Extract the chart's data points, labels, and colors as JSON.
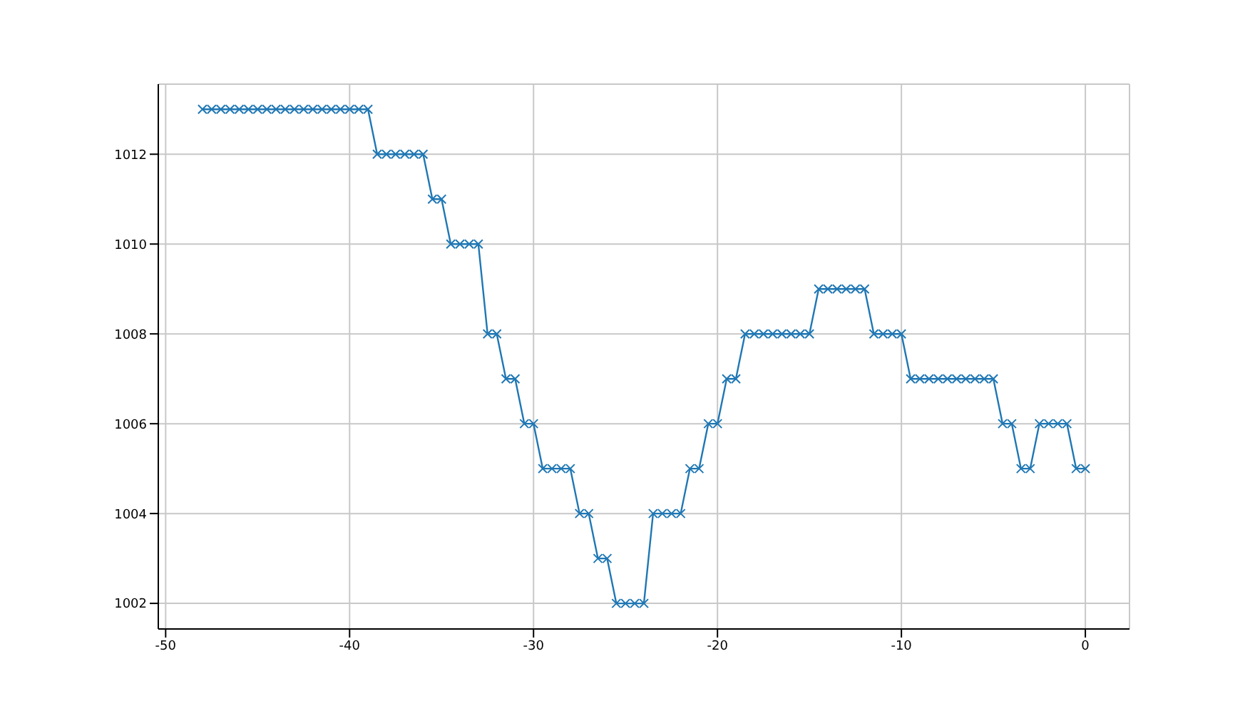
{
  "chart_data": {
    "type": "line",
    "x": [
      -48,
      -47.5,
      -47,
      -46.5,
      -46,
      -45.5,
      -45,
      -44.5,
      -44,
      -43.5,
      -43,
      -42.5,
      -42,
      -41.5,
      -41,
      -40.5,
      -40,
      -39.5,
      -39,
      -38.5,
      -38,
      -37.5,
      -37,
      -36.5,
      -36,
      -35.5,
      -35,
      -34.5,
      -34,
      -33.5,
      -33,
      -32.5,
      -32,
      -31.5,
      -31,
      -30.5,
      -30,
      -29.5,
      -29,
      -28.5,
      -28,
      -27.5,
      -27,
      -26.5,
      -26,
      -25.5,
      -25,
      -24.5,
      -24,
      -23.5,
      -23,
      -22.5,
      -22,
      -21.5,
      -21,
      -20.5,
      -20,
      -19.5,
      -19,
      -18.5,
      -18,
      -17.5,
      -17,
      -16.5,
      -16,
      -15.5,
      -15,
      -14.5,
      -14,
      -13.5,
      -13,
      -12.5,
      -12,
      -11.5,
      -11,
      -10.5,
      -10,
      -9.5,
      -9,
      -8.5,
      -8,
      -7.5,
      -7,
      -6.5,
      -6,
      -5.5,
      -5,
      -4.5,
      -4,
      -3.5,
      -3,
      -2.5,
      -2,
      -1.5,
      -1,
      -0.5,
      0
    ],
    "series": [
      {
        "color": "#1f77b4",
        "values": [
          1013,
          1013,
          1013,
          1013,
          1013,
          1013,
          1013,
          1013,
          1013,
          1013,
          1013,
          1013,
          1013,
          1013,
          1013,
          1013,
          1013,
          1013,
          1013,
          1012,
          1012,
          1012,
          1012,
          1012,
          1012,
          1011,
          1011,
          1010,
          1010,
          1010,
          1010,
          1008,
          1008,
          1007,
          1007,
          1006,
          1006,
          1005,
          1005,
          1005,
          1005,
          1004,
          1004,
          1003,
          1003,
          1002,
          1002,
          1002,
          1002,
          1004,
          1004,
          1004,
          1004,
          1005,
          1005,
          1006,
          1006,
          1007,
          1007,
          1008,
          1008,
          1008,
          1008,
          1008,
          1008,
          1008,
          1008,
          1009,
          1009,
          1009,
          1009,
          1009,
          1009,
          1008,
          1008,
          1008,
          1008,
          1007,
          1007,
          1007,
          1007,
          1007,
          1007,
          1007,
          1007,
          1007,
          1007,
          1006,
          1006,
          1005,
          1005,
          1006,
          1006,
          1006,
          1006,
          1005,
          1005
        ]
      }
    ],
    "xlim": [
      -50.4,
      2.4
    ],
    "xticks": [
      -50,
      -40,
      -30,
      -20,
      -10,
      0
    ],
    "ylim": [
      1001.43,
      1013.56
    ],
    "yticks": [
      1002,
      1004,
      1006,
      1008,
      1010,
      1012
    ],
    "grid": true,
    "marker": "cross",
    "line_style": "solid"
  }
}
